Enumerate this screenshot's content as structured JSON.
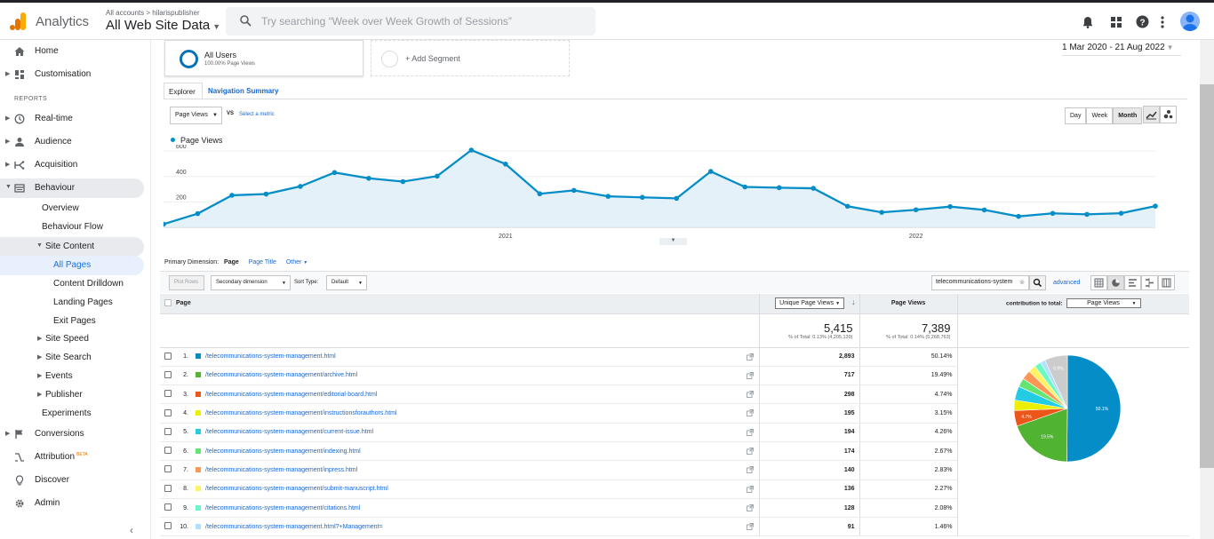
{
  "header": {
    "app_name": "Analytics",
    "account_breadcrumb": "All accounts > hilarispublisher",
    "property_view": "All Web Site Data",
    "search_placeholder": "Try searching “Week over Week Growth of Sessions”"
  },
  "sidebar": {
    "home": "Home",
    "customisation": "Customisation",
    "reports_heading": "REPORTS",
    "realtime": "Real-time",
    "audience": "Audience",
    "acquisition": "Acquisition",
    "behaviour": "Behaviour",
    "overview": "Overview",
    "behaviour_flow": "Behaviour Flow",
    "site_content": "Site Content",
    "all_pages": "All Pages",
    "content_drilldown": "Content Drilldown",
    "landing_pages": "Landing Pages",
    "exit_pages": "Exit Pages",
    "site_speed": "Site Speed",
    "site_search": "Site Search",
    "events": "Events",
    "publisher": "Publisher",
    "experiments": "Experiments",
    "conversions": "Conversions",
    "attribution": "Attribution",
    "attribution_badge": "BETA",
    "discover": "Discover",
    "admin": "Admin"
  },
  "segments": {
    "all_users": "All Users",
    "all_users_sub": "100.00% Page Views",
    "add_segment": "+ Add Segment"
  },
  "date_range": "1 Mar 2020 - 21 Aug 2022",
  "tabs": {
    "explorer": "Explorer",
    "navigation_summary": "Navigation Summary"
  },
  "metric": {
    "selected": "Page Views",
    "vs": "VS",
    "select_metric": "Select a metric"
  },
  "period_buttons": {
    "day": "Day",
    "week": "Week",
    "month": "Month"
  },
  "chart_data": {
    "type": "area",
    "series": [
      {
        "name": "Page Views",
        "values": [
          25,
          108,
          252,
          262,
          322,
          431,
          386,
          360,
          403,
          608,
          498,
          264,
          291,
          244,
          236,
          228,
          440,
          318,
          312,
          307,
          166,
          118,
          138,
          163,
          137,
          86,
          110,
          102,
          111,
          167
        ]
      }
    ],
    "y_ticks": [
      "600",
      "400",
      "200"
    ],
    "ylim": [
      0,
      650
    ],
    "x_ticks": [
      {
        "label": "2021",
        "index": 10
      },
      {
        "label": "2022",
        "index": 22
      }
    ],
    "grid": true,
    "color": "#058dc7"
  },
  "primary_dimension": {
    "label": "Primary Dimension:",
    "current": "Page",
    "page_title": "Page Title",
    "other": "Other"
  },
  "toolbar": {
    "plot_rows": "Plot Rows",
    "secondary_dimension": "Secondary dimension",
    "sort_type_label": "Sort Type:",
    "sort_type": "Default",
    "filter_value": "telecommunications-system",
    "advanced": "advanced"
  },
  "table": {
    "col_page": "Page",
    "col_unique": "Unique Page Views",
    "col_pageviews": "Page Views",
    "contribution_label": "contribution to total:",
    "contribution_metric": "Page Views",
    "totals": {
      "unique": "5,415",
      "unique_sub": "% of Total: 0.13% (4,205,139)",
      "pageviews": "7,389",
      "pageviews_sub": "% of Total: 0.14% (5,268,763)"
    },
    "rows": [
      {
        "idx": "1.",
        "page": "/telecommunications-system-management.html",
        "unique": "2,893",
        "pct": "50.14%",
        "color": "#058dc7"
      },
      {
        "idx": "2.",
        "page": "/telecommunications-system-management/archive.html",
        "unique": "717",
        "pct": "19.49%",
        "color": "#50b432"
      },
      {
        "idx": "3.",
        "page": "/telecommunications-system-management/editorial-board.html",
        "unique": "298",
        "pct": "4.74%",
        "color": "#ed561b"
      },
      {
        "idx": "4.",
        "page": "/telecommunications-system-management/instructionsforauthors.html",
        "unique": "195",
        "pct": "3.15%",
        "color": "#edef00"
      },
      {
        "idx": "5.",
        "page": "/telecommunications-system-management/current-issue.html",
        "unique": "194",
        "pct": "4.26%",
        "color": "#24cbe5"
      },
      {
        "idx": "6.",
        "page": "/telecommunications-system-management/indexing.html",
        "unique": "174",
        "pct": "2.67%",
        "color": "#64e572"
      },
      {
        "idx": "7.",
        "page": "/telecommunications-system-management/inpress.html",
        "unique": "140",
        "pct": "2.83%",
        "color": "#ff9655"
      },
      {
        "idx": "8.",
        "page": "/telecommunications-system-management/submit-manuscript.html",
        "unique": "136",
        "pct": "2.27%",
        "color": "#fff263"
      },
      {
        "idx": "9.",
        "page": "/telecommunications-system-management/citations.html",
        "unique": "128",
        "pct": "2.08%",
        "color": "#6af9c4"
      },
      {
        "idx": "10.",
        "page": "/telecommunications-system-management.html?+Management=",
        "unique": "91",
        "pct": "1.46%",
        "color": "#b2deff"
      }
    ],
    "pie": {
      "slices": [
        50.14,
        19.49,
        4.74,
        3.15,
        4.26,
        2.67,
        2.83,
        2.27,
        2.08,
        1.46,
        6.91
      ],
      "colors": [
        "#058dc7",
        "#50b432",
        "#ed561b",
        "#edef00",
        "#24cbe5",
        "#64e572",
        "#ff9655",
        "#fff263",
        "#6af9c4",
        "#b2deff",
        "#cccccc"
      ],
      "labels": [
        "50.1%",
        "19.5%",
        "4.7%",
        "",
        "",
        "",
        "",
        "",
        "",
        "",
        "6.9%"
      ]
    }
  }
}
